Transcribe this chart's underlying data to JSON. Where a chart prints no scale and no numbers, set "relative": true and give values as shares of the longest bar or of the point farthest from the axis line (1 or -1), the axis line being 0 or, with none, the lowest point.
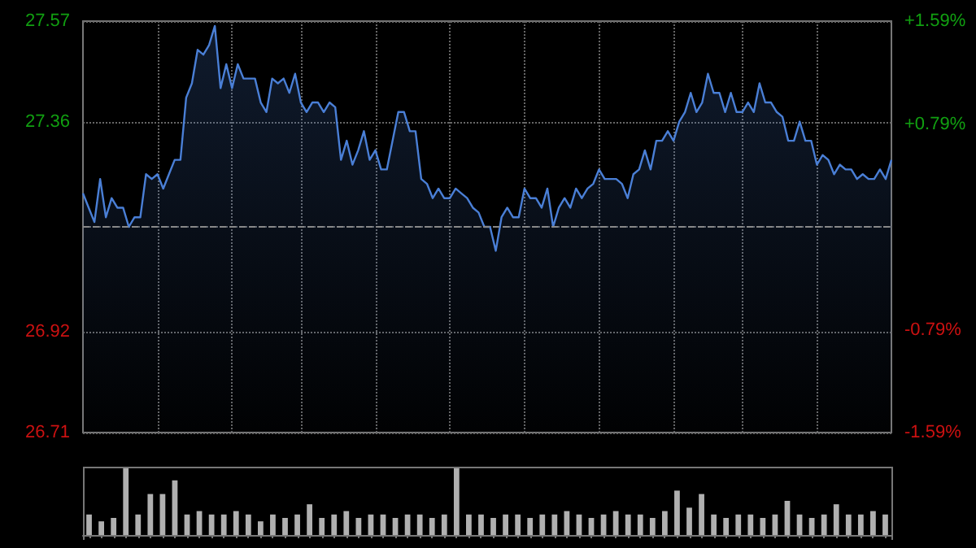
{
  "chart_data": [
    {
      "type": "area",
      "categories": [
        null,
        null,
        null,
        null,
        null,
        null,
        null,
        null,
        null,
        null,
        null,
        null,
        null,
        null,
        null,
        null,
        null,
        null,
        null,
        null,
        null,
        null,
        null,
        null,
        null,
        null,
        null,
        null,
        null,
        null,
        null,
        null,
        null,
        null,
        null,
        null,
        null,
        null,
        null,
        null,
        null,
        null,
        null,
        null,
        null,
        null,
        null,
        null,
        null,
        null,
        null,
        null,
        null,
        null,
        null,
        null,
        null,
        null,
        null,
        null,
        null,
        null,
        null,
        null,
        null,
        null,
        null,
        null,
        null,
        null,
        null,
        null,
        null,
        null,
        null,
        null,
        null,
        null,
        null,
        null,
        null,
        null,
        null,
        null,
        null,
        null,
        null,
        null,
        null,
        null,
        null,
        null,
        null,
        null,
        null,
        null,
        null,
        null,
        null,
        null,
        null,
        null,
        null,
        null,
        null,
        null,
        null,
        null,
        null,
        null,
        null,
        null,
        null,
        null,
        null,
        null,
        null,
        null,
        null,
        null,
        null,
        null,
        null,
        null,
        null,
        null,
        null,
        null,
        null,
        null,
        null,
        null,
        null,
        null,
        null,
        null,
        null,
        null,
        null,
        null,
        null,
        null
      ],
      "series": [
        {
          "color": "#4a7fd6",
          "values": [
            27.21,
            27.18,
            27.15,
            27.24,
            27.16,
            27.2,
            27.18,
            27.18,
            27.14,
            27.16,
            27.16,
            27.25,
            27.24,
            27.25,
            27.22,
            27.25,
            27.28,
            27.28,
            27.41,
            27.44,
            27.51,
            27.5,
            27.52,
            27.56,
            27.43,
            27.48,
            27.43,
            27.48,
            27.45,
            27.45,
            27.45,
            27.4,
            27.38,
            27.45,
            27.44,
            27.45,
            27.42,
            27.46,
            27.4,
            27.38,
            27.4,
            27.4,
            27.38,
            27.4,
            27.39,
            27.28,
            27.32,
            27.27,
            27.3,
            27.34,
            27.28,
            27.3,
            27.26,
            27.26,
            27.32,
            27.38,
            27.38,
            27.34,
            27.34,
            27.24,
            27.23,
            27.2,
            27.22,
            27.2,
            27.2,
            27.22,
            27.21,
            27.2,
            27.18,
            27.17,
            27.14,
            27.14,
            27.09,
            27.16,
            27.18,
            27.16,
            27.16,
            27.22,
            27.2,
            27.2,
            27.18,
            27.22,
            27.14,
            27.18,
            27.2,
            27.18,
            27.22,
            27.2,
            27.22,
            27.23,
            27.26,
            27.24,
            27.24,
            27.24,
            27.23,
            27.2,
            27.25,
            27.26,
            27.3,
            27.26,
            27.32,
            27.32,
            27.34,
            27.32,
            27.36,
            27.38,
            27.42,
            27.38,
            27.4,
            27.46,
            27.42,
            27.42,
            27.38,
            27.42,
            27.38,
            27.38,
            27.4,
            27.38,
            27.44,
            27.4,
            27.4,
            27.38,
            27.37,
            27.32,
            27.32,
            27.36,
            27.32,
            27.32,
            27.27,
            27.29,
            27.28,
            27.25,
            27.27,
            27.26,
            27.26,
            27.24,
            27.25,
            27.24,
            27.24,
            27.26,
            27.24,
            27.28
          ]
        }
      ],
      "ylim": [
        26.71,
        27.57
      ],
      "yticks": [
        26.71,
        26.92,
        {
          "value": 27.14,
          "label": null
        },
        27.36,
        27.57
      ],
      "y2lim": [
        -1.59,
        1.59
      ],
      "y2ticks": [
        {
          "value": -1.59,
          "label": "-1.59%"
        },
        {
          "value": -0.795,
          "label": "-0.79%"
        },
        {
          "value": 0.795,
          "label": "+0.79%"
        },
        {
          "value": 1.59,
          "label": "+1.59%"
        }
      ],
      "ref_lines": [
        {
          "axis": "y",
          "value": 27.14,
          "line_style": "dashed"
        }
      ],
      "grid": true,
      "line_style": "solid"
    },
    {
      "type": "bar",
      "relative": true,
      "categories": [
        null,
        null,
        null,
        null,
        null,
        null,
        null,
        null,
        null,
        null,
        null,
        null,
        null,
        null,
        null,
        null,
        null,
        null,
        null,
        null,
        null,
        null,
        null,
        null,
        null,
        null,
        null,
        null,
        null,
        null,
        null,
        null,
        null,
        null,
        null,
        null,
        null,
        null,
        null,
        null,
        null,
        null,
        null,
        null,
        null,
        null,
        null,
        null,
        null,
        null,
        null,
        null,
        null,
        null,
        null,
        null,
        null,
        null,
        null,
        null,
        null,
        null,
        null,
        null,
        null,
        null
      ],
      "series": [
        {
          "color": "#b0b0b0",
          "values": [
            0.3,
            0.2,
            0.25,
            1,
            0.3,
            0.6,
            0.6,
            0.8,
            0.3,
            0.35,
            0.3,
            0.3,
            0.35,
            0.3,
            0.2,
            0.3,
            0.25,
            0.3,
            0.45,
            0.25,
            0.3,
            0.35,
            0.25,
            0.3,
            0.3,
            0.25,
            0.3,
            0.3,
            0.25,
            0.3,
            1,
            0.3,
            0.3,
            0.25,
            0.3,
            0.3,
            0.25,
            0.3,
            0.3,
            0.35,
            0.3,
            0.25,
            0.3,
            0.35,
            0.3,
            0.3,
            0.25,
            0.35,
            0.65,
            0.4,
            0.6,
            0.3,
            0.25,
            0.3,
            0.3,
            0.25,
            0.3,
            0.5,
            0.3,
            0.25,
            0.3,
            0.45,
            0.3,
            0.3,
            0.35,
            0.3
          ]
        }
      ],
      "grid": "y"
    }
  ]
}
